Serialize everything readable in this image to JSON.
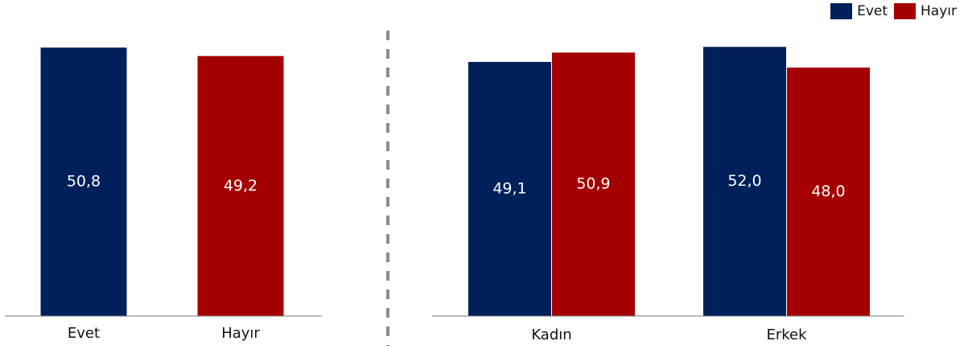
{
  "chart_data": [
    {
      "type": "bar",
      "categories": [
        "Evet",
        "Hayır"
      ],
      "values": [
        50.8,
        49.2
      ],
      "value_labels": [
        "50,8",
        "49,2"
      ],
      "colors": [
        "#00205b",
        "#a50000"
      ],
      "ylim": [
        0,
        52.5
      ]
    },
    {
      "type": "bar",
      "categories": [
        "Kadın",
        "Erkek"
      ],
      "series": [
        {
          "name": "Evet",
          "values": [
            49.1,
            52.0
          ],
          "labels": [
            "49,1",
            "52,0"
          ],
          "color": "#00205b"
        },
        {
          "name": "Hayır",
          "values": [
            50.9,
            48.0
          ],
          "labels": [
            "50,9",
            "48,0"
          ],
          "color": "#a50000"
        }
      ],
      "ylim": [
        0,
        53.6
      ]
    }
  ],
  "legend": [
    {
      "label": "Evet",
      "color": "#00205b"
    },
    {
      "label": "Hayır",
      "color": "#a50000"
    }
  ]
}
